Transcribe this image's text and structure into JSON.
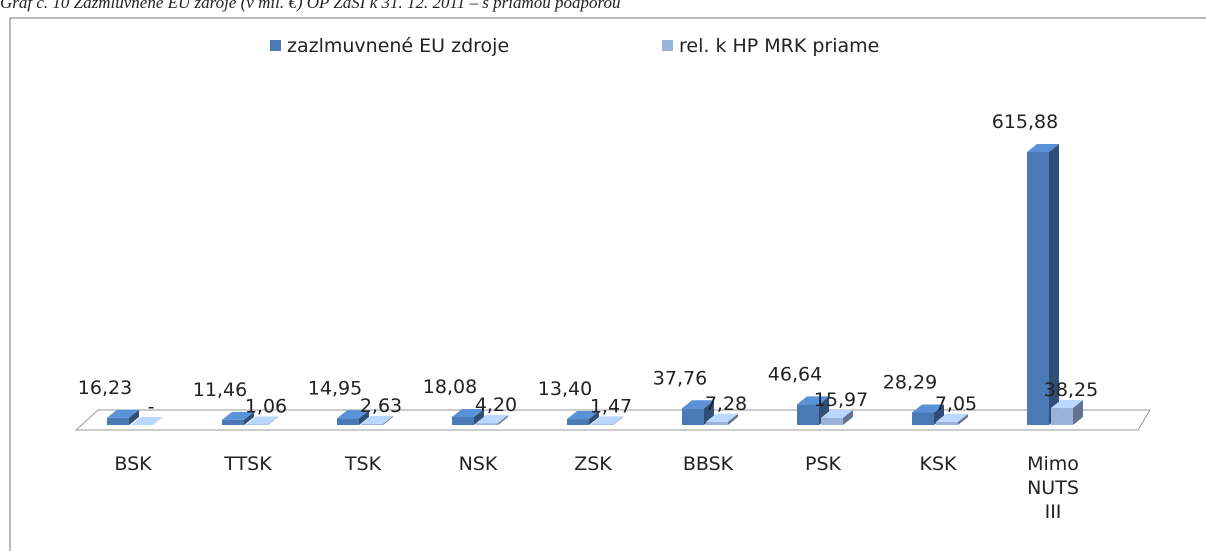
{
  "chart_data": {
    "type": "bar3d",
    "title": "Graf č. 10 Zazmluvnené EU zdroje (v mil. €) OP ZaSI k 31. 12. 2011 – s priamou podporou",
    "categories": [
      "BSK",
      "TTSK",
      "TSK",
      "NSK",
      "ZSK",
      "BBSK",
      "PSK",
      "KSK",
      "Mimo NUTS III"
    ],
    "series": [
      {
        "name": "zazlmuvnené EU zdroje",
        "color": "#4a7ab5",
        "values": [
          16.23,
          11.46,
          14.95,
          18.08,
          13.4,
          37.76,
          46.64,
          28.29,
          615.88
        ],
        "value_labels": [
          "16,23",
          "11,46",
          "14,95",
          "18,08",
          "13,40",
          "37,76",
          "46,64",
          "28,29",
          "615,88"
        ]
      },
      {
        "name": "rel. k HP MRK priame",
        "color": "#9bb3d9",
        "values": [
          0,
          1.06,
          2.63,
          4.2,
          1.47,
          7.28,
          15.97,
          7.05,
          38.25
        ],
        "value_labels": [
          "-",
          "1,06",
          "2,63",
          "4,20",
          "1,47",
          "7,28",
          "15,97",
          "7,05",
          "38,25"
        ]
      }
    ],
    "legend": "top"
  }
}
